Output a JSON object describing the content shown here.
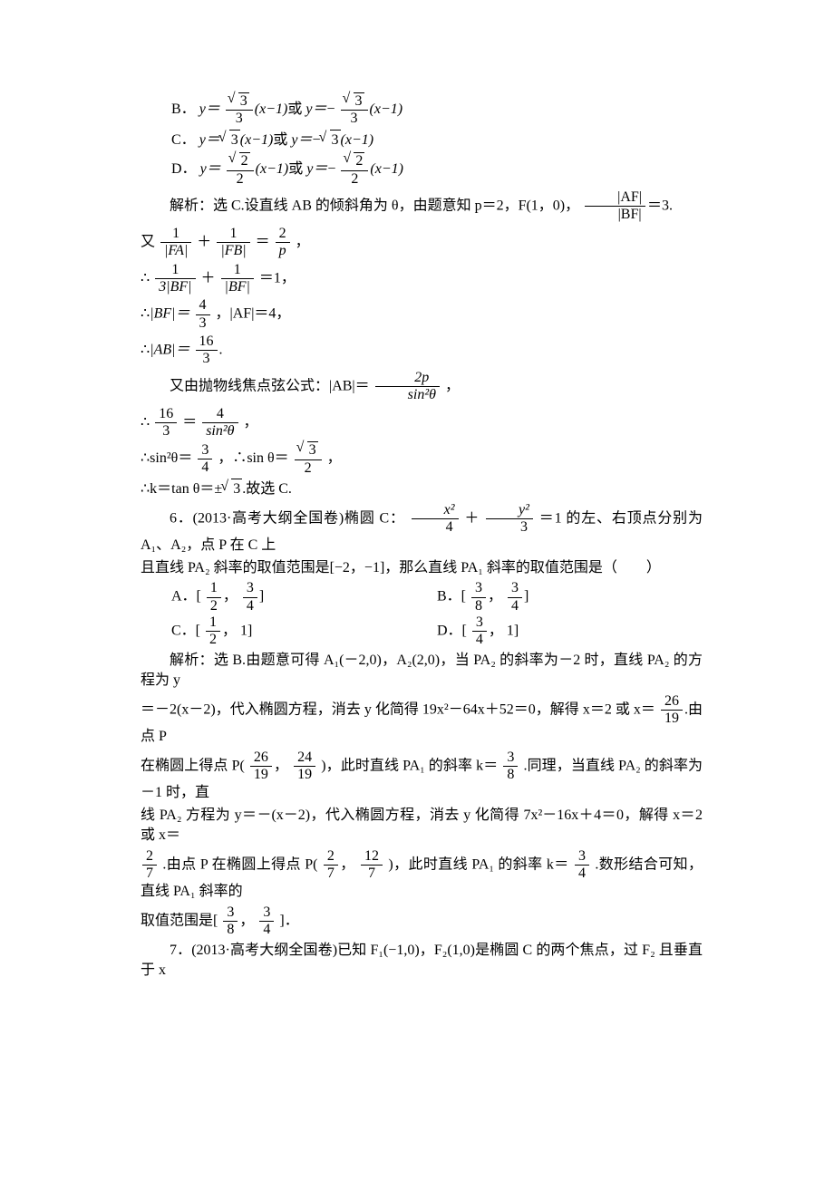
{
  "doc": {
    "colors": {
      "text": "#000000",
      "bg": "#ffffff"
    },
    "font": {
      "family": "SimSun",
      "size_pt": 12,
      "line_height": 1.4
    },
    "optB_label": "B．",
    "optB_main": "或 ",
    "optC_label": "C．",
    "optC_main": "或 ",
    "optD_label": "D．",
    "optD_main": "或 ",
    "y_eq": "y＝",
    "xm1": "(x−1)",
    "neg": "−",
    "sqrt3": "3",
    "sqrt2": "2",
    "three": "3",
    "two": "2",
    "sol5_a": "解析：选 C.设直线 AB 的倾斜角为 θ，由题意知 p＝2，F(1，0)，",
    "sol5_b": "＝3.",
    "AF": "|AF|",
    "BF": "|BF|",
    "s5_l1a": "又",
    "one": "1",
    "FA_abs": "|FA|",
    "FB_abs": "|FB|",
    "plus": "＋",
    "eq": "＝",
    "two_num": "2",
    "p_it": "p",
    "comma": "，",
    "therefore": "∴",
    "threeBF": "3|BF|",
    "BFabs": "|BF|",
    "eq1": "＝1，",
    "BFv": "|BF|＝",
    "four": "4",
    "comma_af": "，|AF|＝4，",
    "ABv": "|AB|＝",
    "sixteen": "16",
    "period": ".",
    "s5_chord_a": "又由抛物线焦点弦公式：|AB|＝",
    "twop": "2p",
    "sin2t": "sin²θ",
    "s5_ln1a": "∴",
    "sixteen3": "16",
    "eq2": "＝",
    "four3": "4",
    "sin2t_eq": "∴sin²θ＝",
    "three4": "3",
    "csint": "，∴sin θ＝",
    "ktan": "∴k＝tan θ＝±",
    "endC": ".故选 C.",
    "q6_a": "6．(2013·高考大纲全国卷)椭圆 C：",
    "x2": "x²",
    "y2": "y²",
    "q6_b": "＝1 的左、右顶点分别为 A₁、A₂，点 P 在 C 上",
    "q6_c": "且直线 PA₂ 斜率的取值范围是[−2，−1]，那么直线 PA₁ 斜率的取值范围是（　　）",
    "optA6": "A．[",
    "optB6": "B．[",
    "optC6": "C．[",
    "optD6": "D．[",
    "cb": "]",
    "half": "1",
    "threequ": "3",
    "eight": "8",
    "com": "，",
    "one_txt": "1]",
    "sol6_a": "解析：选 B.由题意可得 A₁(－2,0)，A₂(2,0)，当 PA₂ 的斜率为－2 时，直线 PA₂ 的方程为 y",
    "sol6_b": "＝－2(x－2)，代入椭圆方程，消去 y 化简得 19x²－64x＋52＝0，解得 x＝2 或 x＝",
    "n26": "26",
    "n19": "19",
    "sol6_b2": ".由点 P",
    "sol6_c": "在椭圆上得点 P(",
    "n24": "24",
    "sol6_c2": ")，此时直线 PA₁ 的斜率 k＝",
    "sol6_c3": ".同理，当直线 PA₂ 的斜率为－1 时，直",
    "sol6_d": "线 PA₂ 方程为 y＝－(x－2)，代入椭圆方程，消去 y 化简得 7x²－16x＋4＝0，解得 x＝2 或 x＝",
    "n2": "2",
    "n7": "7",
    "sol6_e": ".由点 P 在椭圆上得点 P(",
    "n12": "12",
    "sol6_e2": ")，此时直线 PA₁ 的斜率 k＝",
    "sol6_e3": ".数形结合可知，直线 PA₁ 斜率的",
    "sol6_f": "取值范围是[",
    "sol6_f2": "]．",
    "q7": "7．(2013·高考大纲全国卷)已知 F₁(−1,0)，F₂(1,0)是椭圆 C 的两个焦点，过 F₂ 且垂直于 x"
  }
}
